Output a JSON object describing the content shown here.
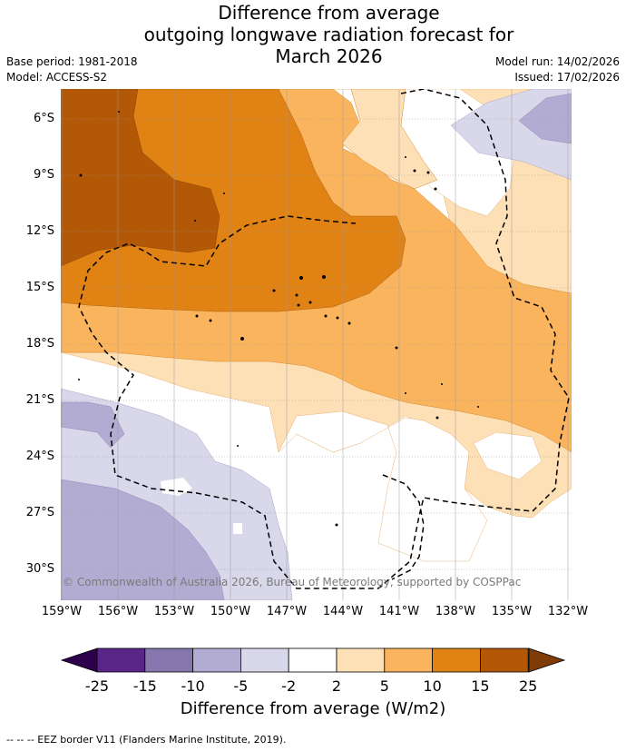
{
  "title": {
    "line1": "Difference from average",
    "line2": "outgoing longwave radiation forecast for",
    "line3": "March 2026"
  },
  "meta": {
    "base_period": "Base period: 1981-2018",
    "model": "Model: ACCESS-S2",
    "model_run": "Model run: 14/02/2026",
    "issued": "Issued: 17/02/2026"
  },
  "map": {
    "lat_labels": [
      "6°S",
      "9°S",
      "12°S",
      "15°S",
      "18°S",
      "21°S",
      "24°S",
      "27°S",
      "30°S"
    ],
    "lon_labels": [
      "159°W",
      "156°W",
      "153°W",
      "150°W",
      "147°W",
      "144°W",
      "141°W",
      "138°W",
      "135°W",
      "132°W"
    ],
    "copyright": "© Commonwealth of Australia 2026, Bureau of Meteorology, supported by COSPPac"
  },
  "colorbar": {
    "ticks": [
      "-25",
      "-15",
      "-10",
      "-5",
      "-2",
      "2",
      "5",
      "10",
      "15",
      "25"
    ],
    "colors": [
      "#5a2589",
      "#8576ad",
      "#b2abd2",
      "#d9d8ea",
      "#ffffff",
      "#fee0b6",
      "#fbb45e",
      "#e08214",
      "#b35806"
    ],
    "under_color": "#2d004b",
    "over_color": "#7f3b08",
    "title": "Difference from average (W/m2)"
  },
  "footnote": "--  --  -- EEZ border V11 (Flanders Marine Institute, 2019)."
}
